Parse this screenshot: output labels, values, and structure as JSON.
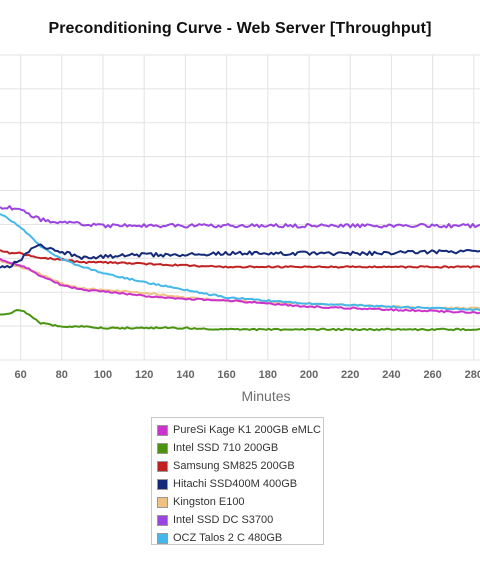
{
  "chart_data": {
    "type": "line",
    "title": "Preconditioning Curve - Web Server [Throughput]",
    "xlabel": "Minutes",
    "ylabel": "",
    "x_ticks": [
      60,
      80,
      100,
      120,
      140,
      160,
      180,
      200,
      220,
      240,
      260,
      280
    ],
    "xlim": [
      50,
      283
    ],
    "ylim": [
      0,
      10
    ],
    "grid": "vertical and horizontal",
    "legend_position": "bottom-center",
    "x": [
      50,
      55,
      60,
      65,
      70,
      80,
      90,
      100,
      120,
      140,
      160,
      180,
      200,
      220,
      240,
      260,
      283
    ],
    "series": [
      {
        "name": "PureSi Kage K1 200GB eMLC",
        "color": "#cc33cc",
        "values": [
          3.3,
          3.2,
          3.1,
          2.95,
          2.75,
          2.45,
          2.3,
          2.25,
          2.1,
          2.0,
          1.95,
          1.85,
          1.75,
          1.7,
          1.65,
          1.6,
          1.55
        ]
      },
      {
        "name": "Intel SSD 710 200GB",
        "color": "#4a9412",
        "values": [
          1.5,
          1.55,
          1.65,
          1.45,
          1.2,
          1.1,
          1.1,
          1.05,
          1.05,
          1.05,
          1.0,
          1.0,
          1.0,
          1.0,
          1.0,
          1.0,
          1.0
        ]
      },
      {
        "name": "Samsung SM825 200GB",
        "color": "#c02222",
        "values": [
          3.6,
          3.5,
          3.5,
          3.4,
          3.35,
          3.3,
          3.2,
          3.2,
          3.15,
          3.1,
          3.05,
          3.05,
          3.05,
          3.05,
          3.05,
          3.05,
          3.05
        ]
      },
      {
        "name": "Hitachi SSD400M 400GB",
        "color": "#142a78",
        "values": [
          3.0,
          3.1,
          3.3,
          3.6,
          3.75,
          3.55,
          3.35,
          3.4,
          3.45,
          3.45,
          3.5,
          3.5,
          3.5,
          3.5,
          3.5,
          3.55,
          3.55
        ]
      },
      {
        "name": "Kingston E100",
        "color": "#efc283",
        "values": [
          3.25,
          3.15,
          3.05,
          2.95,
          2.8,
          2.5,
          2.35,
          2.3,
          2.2,
          2.05,
          1.95,
          1.9,
          1.85,
          1.8,
          1.75,
          1.7,
          1.7
        ]
      },
      {
        "name": "Intel SSD DC S3700",
        "color": "#9b45e0",
        "values": [
          5.0,
          5.0,
          4.9,
          4.75,
          4.6,
          4.5,
          4.45,
          4.4,
          4.4,
          4.4,
          4.4,
          4.4,
          4.4,
          4.4,
          4.4,
          4.4,
          4.4
        ]
      },
      {
        "name": "OCZ Talos 2 C 480GB",
        "color": "#44b8ea",
        "values": [
          4.8,
          4.6,
          4.35,
          4.05,
          3.7,
          3.3,
          3.05,
          2.85,
          2.55,
          2.3,
          2.05,
          1.95,
          1.85,
          1.8,
          1.75,
          1.7,
          1.65
        ]
      }
    ]
  }
}
